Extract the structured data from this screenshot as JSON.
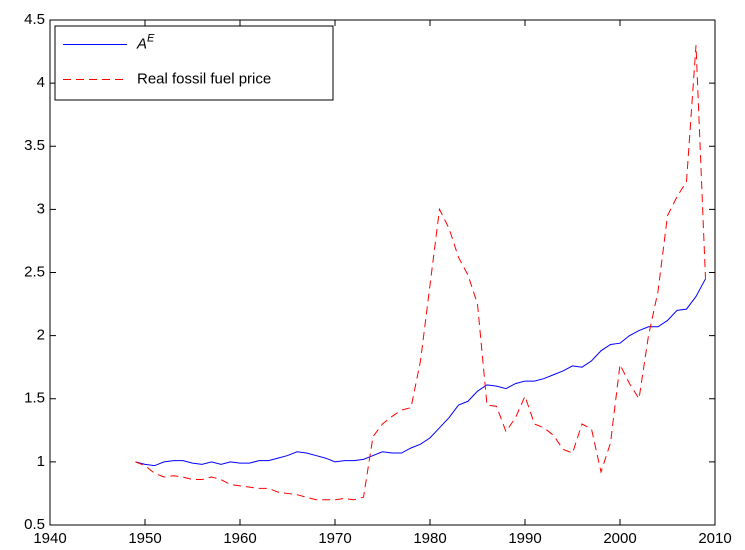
{
  "chart_data": {
    "type": "line",
    "x": [
      1949,
      1950,
      1951,
      1952,
      1953,
      1954,
      1955,
      1956,
      1957,
      1958,
      1959,
      1960,
      1961,
      1962,
      1963,
      1964,
      1965,
      1966,
      1967,
      1968,
      1969,
      1970,
      1971,
      1972,
      1973,
      1974,
      1975,
      1976,
      1977,
      1978,
      1979,
      1980,
      1981,
      1982,
      1983,
      1984,
      1985,
      1986,
      1987,
      1988,
      1989,
      1990,
      1991,
      1992,
      1993,
      1994,
      1995,
      1996,
      1997,
      1998,
      1999,
      2000,
      2001,
      2002,
      2003,
      2004,
      2005,
      2006,
      2007,
      2008,
      2009
    ],
    "series": [
      {
        "name": "A",
        "name_superscript": "E",
        "color": "#0000ff",
        "dash": "solid",
        "values": [
          1.0,
          0.98,
          0.97,
          1.0,
          1.01,
          1.01,
          0.99,
          0.98,
          1.0,
          0.98,
          1.0,
          0.99,
          0.99,
          1.01,
          1.01,
          1.03,
          1.05,
          1.08,
          1.07,
          1.05,
          1.03,
          1.0,
          1.01,
          1.01,
          1.02,
          1.05,
          1.08,
          1.07,
          1.07,
          1.11,
          1.14,
          1.19,
          1.27,
          1.35,
          1.45,
          1.48,
          1.56,
          1.61,
          1.6,
          1.58,
          1.62,
          1.64,
          1.64,
          1.66,
          1.69,
          1.72,
          1.76,
          1.75,
          1.8,
          1.88,
          1.93,
          1.94,
          2.0,
          2.04,
          2.07,
          2.07,
          2.12,
          2.2,
          2.21,
          2.31,
          2.45
        ]
      },
      {
        "name": "Real fossil fuel price",
        "color": "#ff0000",
        "dash": "dashed",
        "values": [
          1.0,
          0.97,
          0.91,
          0.88,
          0.89,
          0.88,
          0.86,
          0.86,
          0.88,
          0.86,
          0.82,
          0.81,
          0.8,
          0.79,
          0.79,
          0.76,
          0.75,
          0.74,
          0.72,
          0.7,
          0.7,
          0.7,
          0.71,
          0.7,
          0.72,
          1.2,
          1.3,
          1.36,
          1.41,
          1.43,
          1.8,
          2.4,
          3.0,
          2.85,
          2.62,
          2.48,
          2.25,
          1.45,
          1.44,
          1.24,
          1.35,
          1.52,
          1.3,
          1.27,
          1.21,
          1.1,
          1.07,
          1.3,
          1.26,
          0.92,
          1.15,
          1.77,
          1.62,
          1.5,
          2.0,
          2.35,
          2.95,
          3.1,
          3.22,
          4.3,
          2.45
        ]
      }
    ],
    "xlim": [
      1940,
      2010
    ],
    "xticks": [
      1940,
      1950,
      1960,
      1970,
      1980,
      1990,
      2000,
      2010
    ],
    "ylim": [
      0.5,
      4.5
    ],
    "yticks": [
      0.5,
      1,
      1.5,
      2,
      2.5,
      3,
      3.5,
      4,
      4.5
    ],
    "grid": false,
    "legend": "upper left"
  }
}
